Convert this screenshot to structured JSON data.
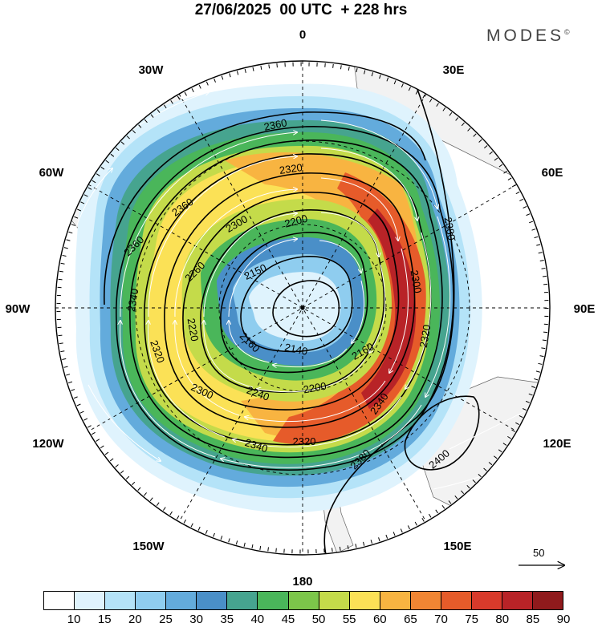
{
  "header": {
    "title": "27/06/2025  00 UTC  + 228 hrs",
    "brand": "MODES",
    "brand_mark": "©"
  },
  "map": {
    "longitude_labels": [
      "0",
      "30E",
      "60E",
      "90E",
      "120E",
      "150E",
      "180",
      "150W",
      "120W",
      "90W",
      "60W",
      "30W"
    ],
    "contour_labels": [
      "2360",
      "2320",
      "2360",
      "2360",
      "2300",
      "2200",
      "2260",
      "2150",
      "2340",
      "2220",
      "2320",
      "2300",
      "2160",
      "2140",
      "2240",
      "2200",
      "2160",
      "2340",
      "2320",
      "2380",
      "2300",
      "2320",
      "2340",
      "2380",
      "2400"
    ],
    "reference_vector_label": "50",
    "colors": {
      "land": "#f2f2f2",
      "contour": "#000000",
      "streamline": "#ffffff"
    }
  },
  "legend": {
    "colors": [
      "#ffffff",
      "#dff3fd",
      "#b4e3f8",
      "#8fcdef",
      "#63abdc",
      "#4a8fc8",
      "#46a48f",
      "#4ab65a",
      "#7cc64a",
      "#c4db4a",
      "#fbe156",
      "#f8b441",
      "#f18533",
      "#e65b2a",
      "#d83a2b",
      "#b82327",
      "#8f1a1c"
    ],
    "labels": [
      "10",
      "15",
      "20",
      "25",
      "30",
      "35",
      "40",
      "45",
      "50",
      "55",
      "60",
      "65",
      "70",
      "75",
      "80",
      "85",
      "90"
    ]
  }
}
